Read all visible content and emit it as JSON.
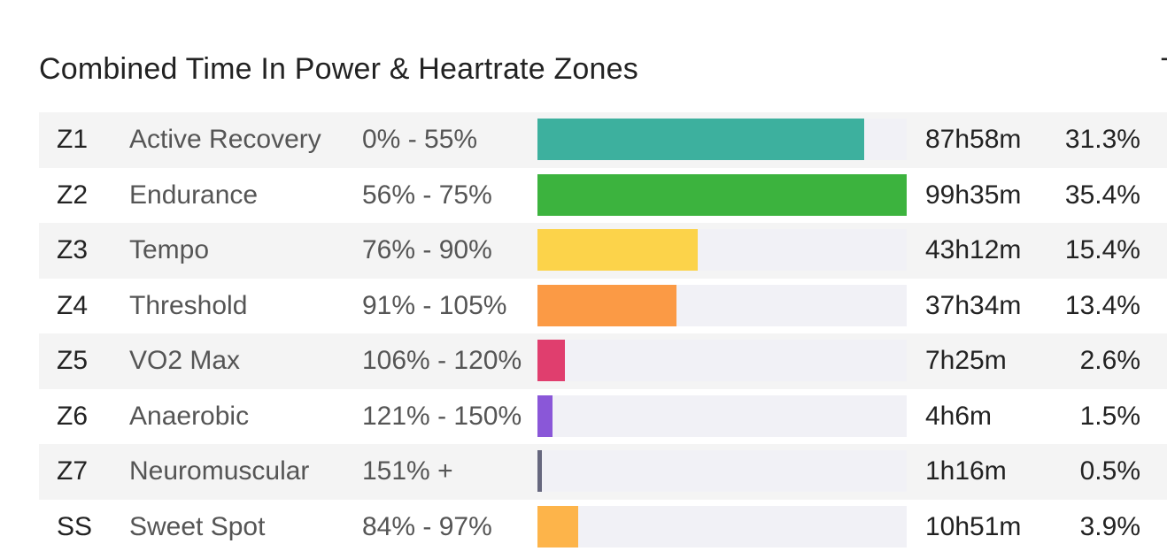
{
  "panel": {
    "title": "Combined Time In Power & Heartrate Zones",
    "next_panel_title_fragment": "T"
  },
  "zones": [
    {
      "id": "Z1",
      "name": "Active Recovery",
      "range": "0% - 55%",
      "time": "87h58m",
      "percent": "31.3%",
      "bar_fraction": 0.885,
      "color": "#3db09e"
    },
    {
      "id": "Z2",
      "name": "Endurance",
      "range": "56% - 75%",
      "time": "99h35m",
      "percent": "35.4%",
      "bar_fraction": 1.0,
      "color": "#3cb33e"
    },
    {
      "id": "Z3",
      "name": "Tempo",
      "range": "76% - 90%",
      "time": "43h12m",
      "percent": "15.4%",
      "bar_fraction": 0.435,
      "color": "#fcd34a"
    },
    {
      "id": "Z4",
      "name": "Threshold",
      "range": "91% - 105%",
      "time": "37h34m",
      "percent": "13.4%",
      "bar_fraction": 0.377,
      "color": "#fb9a45"
    },
    {
      "id": "Z5",
      "name": "VO2 Max",
      "range": "106% - 120%",
      "time": "7h25m",
      "percent": "2.6%",
      "bar_fraction": 0.074,
      "color": "#e03e6e"
    },
    {
      "id": "Z6",
      "name": "Anaerobic",
      "range": "121% - 150%",
      "time": "4h6m",
      "percent": "1.5%",
      "bar_fraction": 0.041,
      "color": "#8a57d8"
    },
    {
      "id": "Z7",
      "name": "Neuromuscular",
      "range": "151% +",
      "time": "1h16m",
      "percent": "0.5%",
      "bar_fraction": 0.013,
      "color": "#66677e"
    },
    {
      "id": "SS",
      "name": "Sweet Spot",
      "range": "84% - 97%",
      "time": "10h51m",
      "percent": "3.9%",
      "bar_fraction": 0.11,
      "color": "#fdb44a"
    }
  ]
}
